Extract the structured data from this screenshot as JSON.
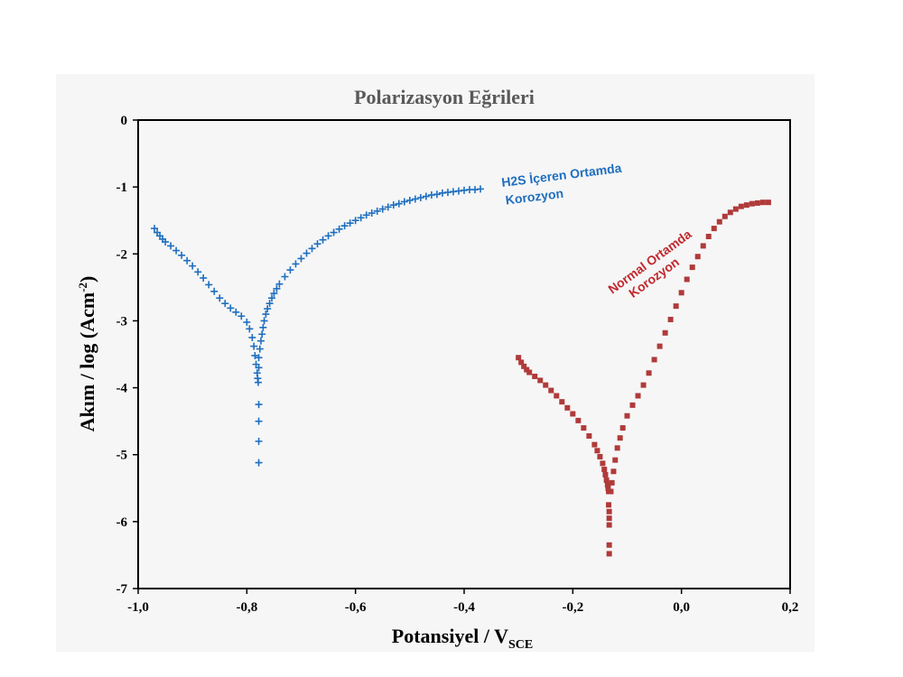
{
  "chart_data": {
    "type": "scatter",
    "title": "Polarizasyon Eğrileri",
    "xlabel": "Potansiyel / V",
    "xlabel_sub": "SCE",
    "ylabel": "Akım / log (Acm",
    "ylabel_sup": "-2",
    "ylabel_end": ")",
    "xlim": [
      -1.0,
      0.2
    ],
    "ylim": [
      -7,
      0
    ],
    "xticks": [
      -1.0,
      -0.8,
      -0.6,
      -0.4,
      -0.2,
      0.0,
      0.2
    ],
    "xtick_labels": [
      "-1,0",
      "-0,8",
      "-0,6",
      "-0,4",
      "-0,2",
      "0,0",
      "0,2"
    ],
    "yticks": [
      0,
      -1,
      -2,
      -3,
      -4,
      -5,
      -6,
      -7
    ],
    "ytick_labels": [
      "0",
      "-1",
      "-2",
      "-3",
      "-4",
      "-5",
      "-6",
      "-7"
    ],
    "grid": false,
    "series": [
      {
        "label_lines": [
          "H2S İçeren Ortamda",
          "Korozyon"
        ],
        "color": "#1f6fbf",
        "marker": "plus",
        "x": [
          -0.97,
          -0.965,
          -0.96,
          -0.955,
          -0.95,
          -0.94,
          -0.93,
          -0.92,
          -0.91,
          -0.9,
          -0.89,
          -0.88,
          -0.87,
          -0.86,
          -0.85,
          -0.84,
          -0.83,
          -0.82,
          -0.81,
          -0.8,
          -0.795,
          -0.79,
          -0.787,
          -0.785,
          -0.783,
          -0.781,
          -0.78,
          -0.779,
          -0.778,
          -0.778,
          -0.778,
          -0.778,
          -0.778,
          -0.778,
          -0.776,
          -0.774,
          -0.772,
          -0.77,
          -0.768,
          -0.765,
          -0.762,
          -0.758,
          -0.754,
          -0.75,
          -0.745,
          -0.74,
          -0.73,
          -0.72,
          -0.71,
          -0.7,
          -0.69,
          -0.68,
          -0.67,
          -0.66,
          -0.65,
          -0.64,
          -0.63,
          -0.62,
          -0.61,
          -0.6,
          -0.59,
          -0.58,
          -0.57,
          -0.56,
          -0.55,
          -0.54,
          -0.53,
          -0.52,
          -0.51,
          -0.5,
          -0.49,
          -0.48,
          -0.47,
          -0.46,
          -0.45,
          -0.44,
          -0.43,
          -0.42,
          -0.41,
          -0.4,
          -0.39,
          -0.38,
          -0.37
        ],
        "y": [
          -1.62,
          -1.68,
          -1.73,
          -1.78,
          -1.82,
          -1.88,
          -1.95,
          -2.02,
          -2.1,
          -2.18,
          -2.27,
          -2.36,
          -2.46,
          -2.56,
          -2.66,
          -2.74,
          -2.81,
          -2.87,
          -2.93,
          -3.02,
          -3.12,
          -3.25,
          -3.38,
          -3.52,
          -3.65,
          -3.78,
          -3.86,
          -3.92,
          -4.25,
          -4.5,
          -4.8,
          -5.12,
          -3.7,
          -3.55,
          -3.42,
          -3.3,
          -3.2,
          -3.1,
          -3.0,
          -2.9,
          -2.82,
          -2.74,
          -2.66,
          -2.59,
          -2.52,
          -2.45,
          -2.34,
          -2.24,
          -2.15,
          -2.07,
          -1.99,
          -1.92,
          -1.85,
          -1.79,
          -1.73,
          -1.68,
          -1.63,
          -1.58,
          -1.54,
          -1.5,
          -1.46,
          -1.42,
          -1.39,
          -1.36,
          -1.33,
          -1.3,
          -1.27,
          -1.25,
          -1.22,
          -1.2,
          -1.18,
          -1.16,
          -1.14,
          -1.12,
          -1.11,
          -1.09,
          -1.08,
          -1.07,
          -1.06,
          -1.05,
          -1.04,
          -1.04,
          -1.03
        ]
      },
      {
        "label_lines": [
          "Normal Ortamda",
          "Korozyon"
        ],
        "color": "#b03a3a",
        "marker": "square",
        "x": [
          -0.3,
          -0.295,
          -0.29,
          -0.285,
          -0.28,
          -0.27,
          -0.26,
          -0.25,
          -0.24,
          -0.23,
          -0.22,
          -0.21,
          -0.2,
          -0.19,
          -0.18,
          -0.17,
          -0.16,
          -0.155,
          -0.15,
          -0.145,
          -0.142,
          -0.14,
          -0.138,
          -0.136,
          -0.135,
          -0.134,
          -0.134,
          -0.133,
          -0.133,
          -0.133,
          -0.133,
          -0.133,
          -0.13,
          -0.128,
          -0.125,
          -0.122,
          -0.118,
          -0.113,
          -0.108,
          -0.1,
          -0.09,
          -0.08,
          -0.07,
          -0.06,
          -0.05,
          -0.04,
          -0.03,
          -0.02,
          -0.01,
          0.0,
          0.01,
          0.02,
          0.03,
          0.04,
          0.05,
          0.06,
          0.07,
          0.08,
          0.09,
          0.1,
          0.11,
          0.12,
          0.13,
          0.14,
          0.15,
          0.16
        ],
        "y": [
          -3.55,
          -3.62,
          -3.68,
          -3.73,
          -3.77,
          -3.83,
          -3.89,
          -3.96,
          -4.04,
          -4.12,
          -4.21,
          -4.3,
          -4.39,
          -4.49,
          -4.6,
          -4.72,
          -4.85,
          -4.94,
          -5.03,
          -5.13,
          -5.22,
          -5.3,
          -5.38,
          -5.45,
          -5.5,
          -5.55,
          -5.75,
          -5.85,
          -5.95,
          -6.05,
          -6.35,
          -6.48,
          -5.55,
          -5.42,
          -5.25,
          -5.08,
          -4.9,
          -4.75,
          -4.6,
          -4.42,
          -4.26,
          -4.12,
          -3.96,
          -3.78,
          -3.58,
          -3.38,
          -3.18,
          -2.98,
          -2.78,
          -2.58,
          -2.38,
          -2.2,
          -2.04,
          -1.88,
          -1.74,
          -1.62,
          -1.52,
          -1.44,
          -1.38,
          -1.33,
          -1.29,
          -1.27,
          -1.25,
          -1.24,
          -1.23,
          -1.23
        ]
      }
    ]
  }
}
